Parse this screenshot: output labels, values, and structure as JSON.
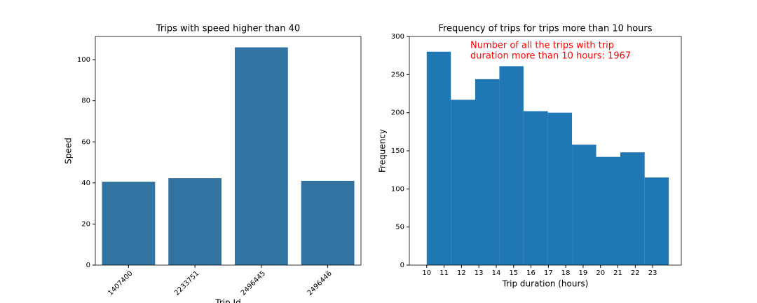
{
  "chart_data": [
    {
      "type": "bar",
      "title": "Trips with speed higher than 40",
      "x_label": "Trip Id",
      "y_label": "Speed",
      "categories": [
        "1407400",
        "2233751",
        "2496445",
        "2496446"
      ],
      "values": [
        40.6,
        42.3,
        106,
        41
      ],
      "color": "#3274a1",
      "ylim": [
        0,
        111.3
      ],
      "yticks": [
        0,
        20,
        40,
        60,
        80,
        100
      ]
    },
    {
      "type": "histogram",
      "title": "Frequency of trips for trips more than 10 hours",
      "x_label": "Trip duration (hours)",
      "y_label": "Frequency",
      "bins": [
        10,
        11.39,
        12.79,
        14.18,
        15.57,
        16.97,
        18.36,
        19.75,
        21.14,
        22.54,
        23.93
      ],
      "values": [
        280,
        217,
        244,
        261,
        202,
        200,
        158,
        142,
        148,
        115
      ],
      "color": "#1f77b4",
      "xlim": [
        9,
        24.65
      ],
      "xticks": [
        10,
        11,
        12,
        13,
        14,
        15,
        16,
        17,
        18,
        19,
        20,
        21,
        22,
        23
      ],
      "ylim": [
        0,
        300
      ],
      "yticks": [
        0,
        50,
        100,
        150,
        200,
        250,
        300
      ],
      "annotation": [
        "Number of all the trips with trip",
        "duration more than 10 hours: 1967"
      ]
    }
  ]
}
